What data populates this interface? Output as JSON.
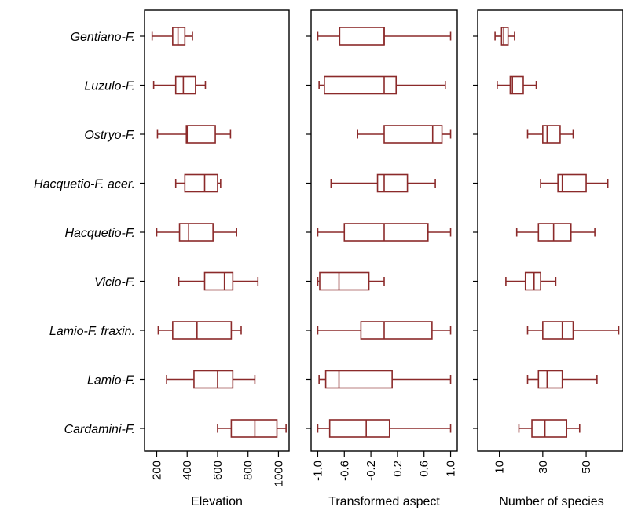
{
  "chart_data": {
    "type": "boxplot",
    "categories": [
      "Gentiano-F.",
      "Luzulo-F.",
      "Ostryo-F.",
      "Hacquetio-F. acer.",
      "Hacquetio-F.",
      "Vicio-F.",
      "Lamio-F. fraxin.",
      "Lamio-F.",
      "Cardamini-F."
    ],
    "box_color": "#8b2a2a",
    "panels": [
      {
        "name": "elevation",
        "xlabel": "Elevation",
        "xlim": [
          120,
          1070
        ],
        "ticks": [
          200,
          400,
          600,
          800,
          1000
        ],
        "tick_labels": [
          "200",
          "400",
          "600",
          "800",
          "1000"
        ],
        "boxes": [
          {
            "min": 170,
            "q1": 305,
            "median": 340,
            "q3": 385,
            "max": 435
          },
          {
            "min": 180,
            "q1": 325,
            "median": 375,
            "q3": 455,
            "max": 520
          },
          {
            "min": 205,
            "q1": 395,
            "median": 400,
            "q3": 585,
            "max": 685
          },
          {
            "min": 325,
            "q1": 385,
            "median": 515,
            "q3": 600,
            "max": 620
          },
          {
            "min": 200,
            "q1": 350,
            "median": 410,
            "q3": 570,
            "max": 725
          },
          {
            "min": 345,
            "q1": 515,
            "median": 645,
            "q3": 700,
            "max": 865
          },
          {
            "min": 210,
            "q1": 305,
            "median": 465,
            "q3": 690,
            "max": 755
          },
          {
            "min": 265,
            "q1": 445,
            "median": 600,
            "q3": 700,
            "max": 845
          },
          {
            "min": 600,
            "q1": 690,
            "median": 845,
            "q3": 990,
            "max": 1050
          }
        ]
      },
      {
        "name": "aspect",
        "xlabel": "Transformed aspect",
        "xlim": [
          -1.1,
          1.1
        ],
        "ticks": [
          -1.0,
          -0.6,
          -0.2,
          0.2,
          0.6,
          1.0
        ],
        "tick_labels": [
          "-1.0",
          "-0.6",
          "-0.2",
          "0.2",
          "0.6",
          "1.0"
        ],
        "boxes": [
          {
            "min": -1.0,
            "q1": -0.67,
            "median": 0.0,
            "q3": 0.0,
            "max": 1.0
          },
          {
            "min": -0.98,
            "q1": -0.9,
            "median": 0.0,
            "q3": 0.18,
            "max": 0.92
          },
          {
            "min": -0.4,
            "q1": 0.0,
            "median": 0.73,
            "q3": 0.87,
            "max": 1.0
          },
          {
            "min": -0.8,
            "q1": -0.1,
            "median": 0.0,
            "q3": 0.35,
            "max": 0.77
          },
          {
            "min": -1.0,
            "q1": -0.6,
            "median": 0.0,
            "q3": 0.66,
            "max": 1.0
          },
          {
            "min": -1.0,
            "q1": -0.97,
            "median": -0.68,
            "q3": -0.23,
            "max": 0.0
          },
          {
            "min": -1.0,
            "q1": -0.35,
            "median": 0.0,
            "q3": 0.72,
            "max": 1.0
          },
          {
            "min": -0.98,
            "q1": -0.88,
            "median": -0.68,
            "q3": 0.12,
            "max": 1.0
          },
          {
            "min": -1.0,
            "q1": -0.82,
            "median": -0.27,
            "q3": 0.08,
            "max": 1.0
          }
        ]
      },
      {
        "name": "species",
        "xlabel": "Number of species",
        "xlim": [
          0,
          67
        ],
        "ticks": [
          10,
          30,
          50
        ],
        "tick_labels": [
          "10",
          "30",
          "50"
        ],
        "boxes": [
          {
            "min": 8,
            "q1": 11,
            "median": 12,
            "q3": 14,
            "max": 17
          },
          {
            "min": 9,
            "q1": 15,
            "median": 16,
            "q3": 21,
            "max": 27
          },
          {
            "min": 23,
            "q1": 30,
            "median": 32,
            "q3": 38,
            "max": 44
          },
          {
            "min": 29,
            "q1": 37,
            "median": 39,
            "q3": 50,
            "max": 60
          },
          {
            "min": 18,
            "q1": 28,
            "median": 35,
            "q3": 43,
            "max": 54
          },
          {
            "min": 13,
            "q1": 22,
            "median": 26,
            "q3": 29,
            "max": 36
          },
          {
            "min": 23,
            "q1": 30,
            "median": 39,
            "q3": 44,
            "max": 65
          },
          {
            "min": 23,
            "q1": 28,
            "median": 32,
            "q3": 39,
            "max": 55
          },
          {
            "min": 19,
            "q1": 25,
            "median": 31,
            "q3": 41,
            "max": 47
          }
        ]
      }
    ]
  }
}
